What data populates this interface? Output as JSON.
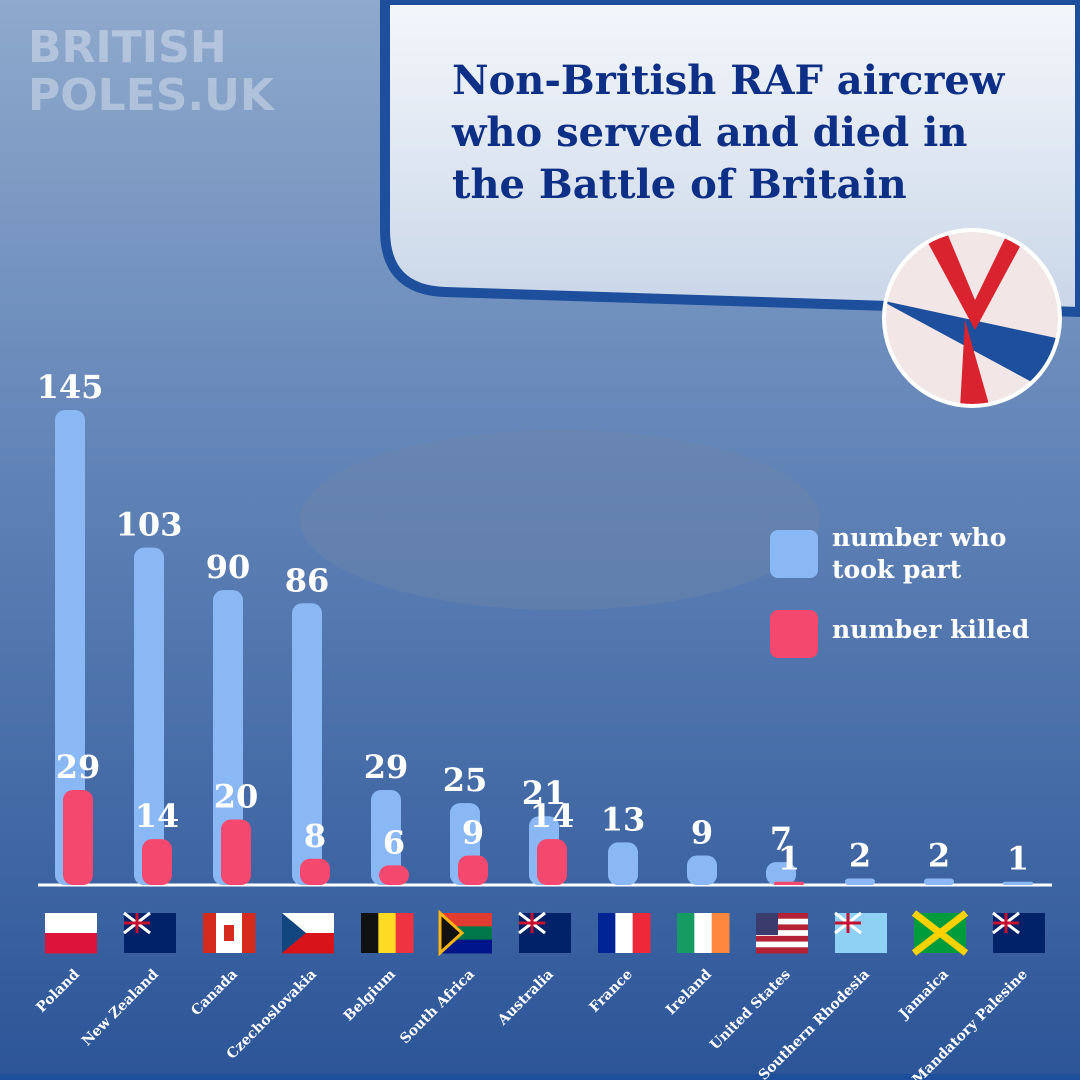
{
  "chart_data": {
    "type": "bar",
    "title": [
      "Non-British RAF aircrew",
      "who served and died in",
      "the Battle of Britain"
    ],
    "watermark": [
      "BRITISH",
      "POLES.UK"
    ],
    "categories": [
      "Poland",
      "New Zealand",
      "Canada",
      "Czechoslovakia",
      "Belgium",
      "South Africa",
      "Australia",
      "France",
      "Ireland",
      "United States",
      "Southern Rhodesia",
      "Jamaica",
      "Mandatory Palesine"
    ],
    "series": [
      {
        "name": "number who took part",
        "color": "#8ab8f5",
        "values": [
          145,
          103,
          90,
          86,
          29,
          25,
          21,
          13,
          9,
          7,
          2,
          2,
          1
        ]
      },
      {
        "name": "number killed",
        "color": "#f5486f",
        "values": [
          29,
          14,
          20,
          8,
          6,
          9,
          14,
          null,
          null,
          1,
          null,
          null,
          null
        ]
      }
    ]
  }
}
